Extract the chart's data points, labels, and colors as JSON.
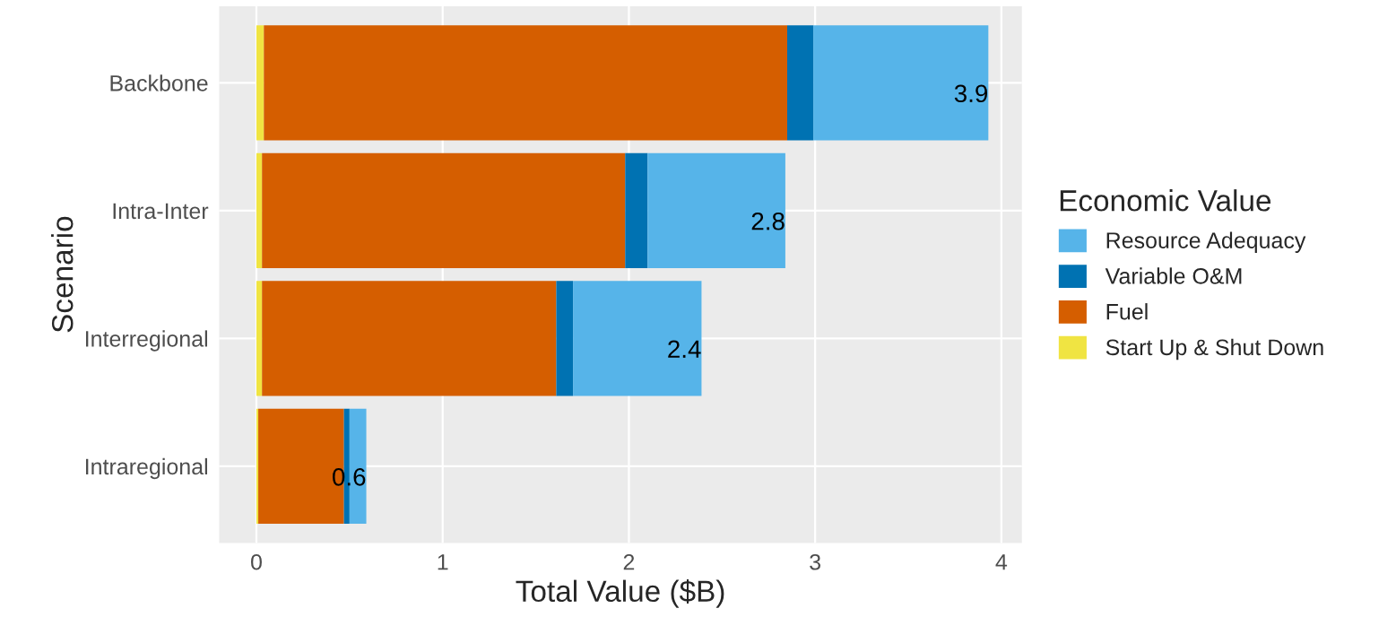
{
  "chart_data": {
    "type": "bar",
    "orientation": "horizontal",
    "stacked": true,
    "xlabel": "Total Value ($B)",
    "ylabel": "Scenario",
    "legend_title": "Economic Value",
    "legend": "right",
    "grid": true,
    "categories": [
      "Backbone",
      "Intra-Inter",
      "Interregional",
      "Intraregional"
    ],
    "series": [
      {
        "name": "Start Up & Shut Down",
        "color": "#f0e442",
        "values": [
          0.04,
          0.03,
          0.03,
          0.01
        ]
      },
      {
        "name": "Fuel",
        "color": "#d55e00",
        "values": [
          2.81,
          1.95,
          1.58,
          0.46
        ]
      },
      {
        "name": "Variable O&M",
        "color": "#0072b2",
        "values": [
          0.14,
          0.12,
          0.09,
          0.03
        ]
      },
      {
        "name": "Resource Adequacy",
        "color": "#56b4e9",
        "values": [
          0.94,
          0.74,
          0.69,
          0.09
        ]
      }
    ],
    "totals": [
      "3.9",
      "2.8",
      "2.4",
      "0.6"
    ],
    "xlim": [
      -0.2,
      4.11
    ],
    "xticks": [
      0,
      1,
      2,
      3,
      4
    ]
  }
}
